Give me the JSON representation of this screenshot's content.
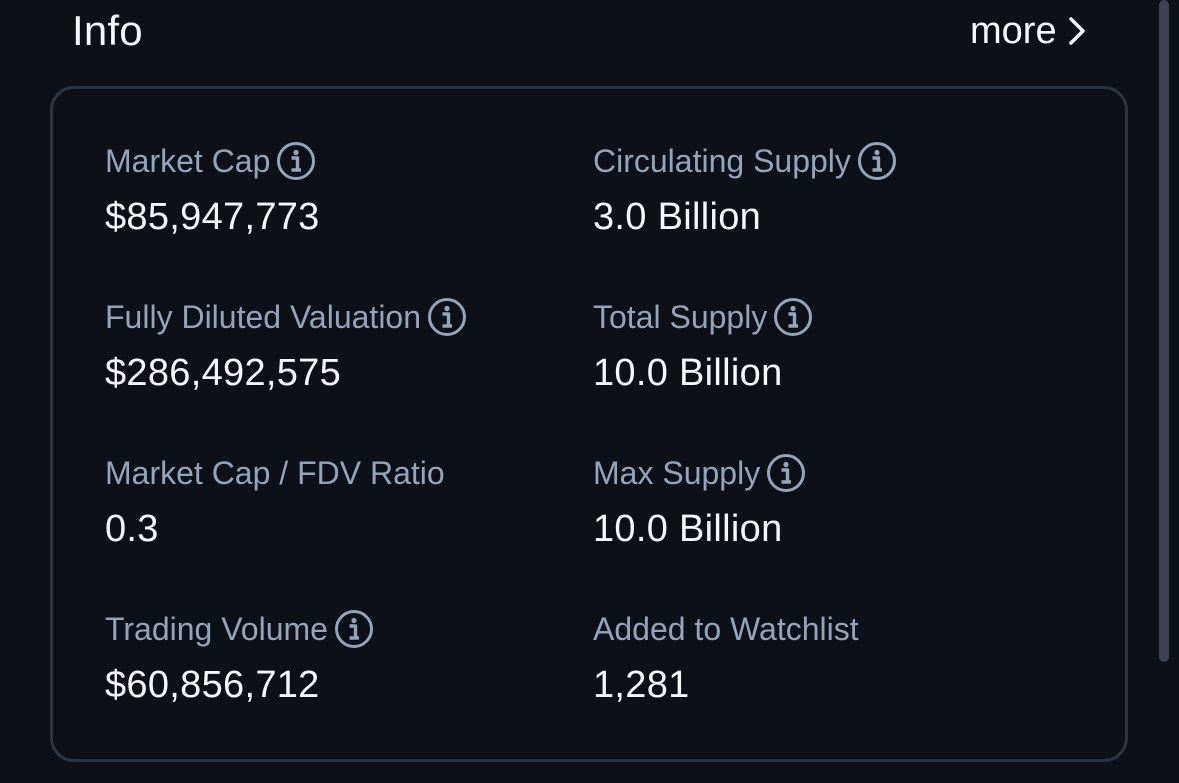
{
  "header": {
    "title": "Info",
    "more_label": "more"
  },
  "icons": {
    "info": "info-circle-icon",
    "more": "chevron-right-icon"
  },
  "colors": {
    "background": "#0d1117",
    "card_border": "#2b3442",
    "label": "#93a4bd",
    "value": "#f5f7fa"
  },
  "stats": [
    {
      "label": "Market Cap",
      "value": "$85,947,773",
      "has_info": true
    },
    {
      "label": "Circulating Supply",
      "value": "3.0 Billion",
      "has_info": true
    },
    {
      "label": "Fully Diluted Valuation",
      "value": "$286,492,575",
      "has_info": true
    },
    {
      "label": "Total Supply",
      "value": "10.0 Billion",
      "has_info": true
    },
    {
      "label": "Market Cap / FDV Ratio",
      "value": "0.3",
      "has_info": false
    },
    {
      "label": "Max Supply",
      "value": "10.0 Billion",
      "has_info": true
    },
    {
      "label": "Trading Volume",
      "value": "$60,856,712",
      "has_info": true
    },
    {
      "label": "Added to Watchlist",
      "value": "1,281",
      "has_info": false
    }
  ]
}
